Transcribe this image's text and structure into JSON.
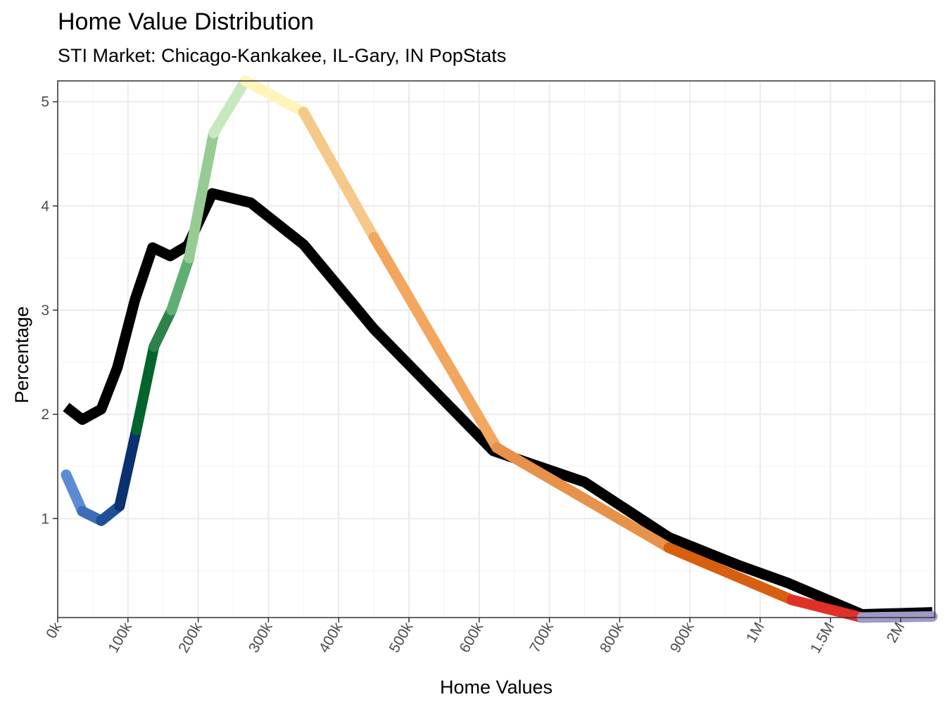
{
  "chart_data": {
    "type": "line",
    "title": "Home Value Distribution",
    "subtitle": "STI Market: Chicago-Kankakee, IL-Gary, IN PopStats",
    "xlabel": "Home Values",
    "ylabel": "Percentage",
    "x_tick_labels": [
      "0k",
      "100k",
      "200k",
      "300k",
      "400k",
      "500k",
      "600k",
      "700k",
      "800k",
      "900k",
      "1M",
      "1.5M",
      "2M"
    ],
    "y_ticks": [
      1,
      2,
      3,
      4,
      5
    ],
    "ylim": [
      0.05,
      5.2
    ],
    "grid": true,
    "legend": "none",
    "colors": {
      "gradient": [
        "#5B8BD2",
        "#3D6DB8",
        "#1F4F96",
        "#0A3270",
        "#00642D",
        "#2E8148",
        "#5FAE74",
        "#96CC93",
        "#C7E9C0",
        "#FFF5BA",
        "#F6C98A",
        "#F2A65E",
        "#E8914A",
        "#D95F10",
        "#E03128",
        "#9E9AC8",
        "#6A51A3"
      ],
      "market_line": "#000000"
    },
    "series": [
      {
        "role": "market",
        "x": [
          0.12,
          0.35,
          0.62,
          0.85,
          1.1,
          1.35,
          1.6,
          1.85,
          2.2,
          2.75,
          3.5,
          4.5,
          6.2,
          7.5,
          8.7,
          9.7,
          10.4,
          11.45,
          12.45
        ],
        "y": [
          2.07,
          1.95,
          2.05,
          2.45,
          3.1,
          3.6,
          3.52,
          3.62,
          4.12,
          4.03,
          3.63,
          2.82,
          1.65,
          1.35,
          0.82,
          0.55,
          0.38,
          0.08,
          0.1
        ]
      },
      {
        "role": "region",
        "x": [
          0.12,
          0.35,
          0.62,
          0.88,
          1.12,
          1.37,
          1.62,
          1.87,
          2.22,
          2.67,
          3.5,
          4.5,
          6.25,
          8.7,
          10.45,
          11.45,
          12.45
        ],
        "y": [
          1.42,
          1.07,
          0.98,
          1.12,
          1.85,
          2.65,
          3.0,
          3.5,
          4.7,
          5.2,
          4.9,
          3.7,
          1.68,
          0.72,
          0.22,
          0.05,
          0.06
        ],
        "segment_colors": [
          "#5B8BD2",
          "#3D6DB8",
          "#1F4F96",
          "#0A3270",
          "#00642D",
          "#2E8148",
          "#5FAE74",
          "#96CC93",
          "#C7E9C0",
          "#FFF5BA",
          "#F6C98A",
          "#F2A65E",
          "#E8914A",
          "#D95F10",
          "#E03128",
          "#9E9AC8",
          "#6A51A3"
        ]
      }
    ]
  }
}
